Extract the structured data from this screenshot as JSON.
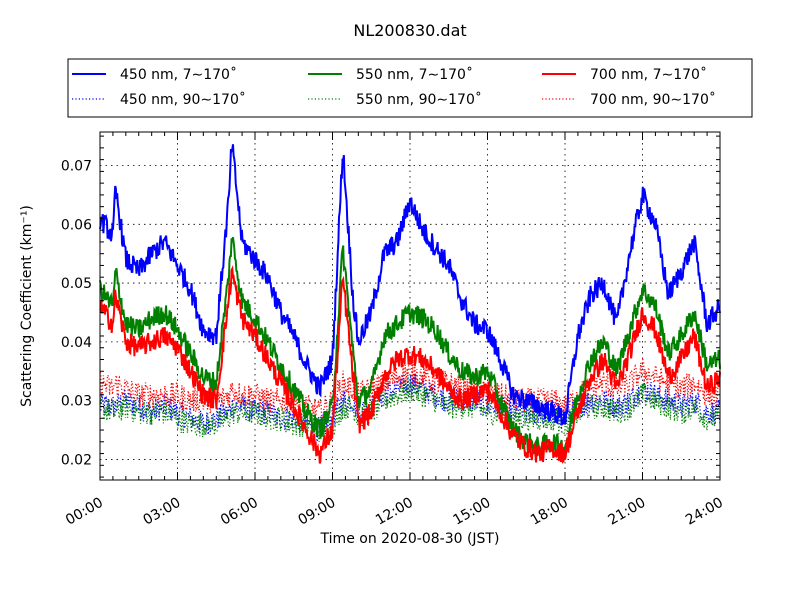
{
  "chart_data": {
    "type": "line",
    "title": "NL200830.dat",
    "xlabel": "Time on 2020-08-30 (JST)",
    "ylabel": "Scattering Coefficient (km⁻¹)",
    "xlim": [
      0,
      24
    ],
    "ylim": [
      0.0165,
      0.0757
    ],
    "x_ticks": [
      0,
      3,
      6,
      9,
      12,
      15,
      18,
      21,
      24
    ],
    "x_tick_labels": [
      "00:00",
      "03:00",
      "06:00",
      "09:00",
      "12:00",
      "15:00",
      "18:00",
      "21:00",
      "24:00"
    ],
    "y_ticks": [
      0.02,
      0.03,
      0.04,
      0.05,
      0.06,
      0.07
    ],
    "y_tick_labels": [
      "0.02",
      "0.03",
      "0.04",
      "0.05",
      "0.06",
      "0.07"
    ],
    "grid": true,
    "legend_position": "top-outside",
    "x_hours": [
      0,
      0.5,
      0.6,
      1,
      1.5,
      2,
      2.5,
      3,
      3.5,
      4,
      4.5,
      5,
      5.1,
      5.5,
      6,
      6.5,
      7,
      7.5,
      8,
      8.5,
      9,
      9.4,
      9.8,
      10,
      10.5,
      11,
      11.5,
      12,
      12.5,
      13,
      13.5,
      14,
      14.5,
      15,
      15.5,
      16,
      16.5,
      17,
      17.5,
      18,
      18.5,
      19,
      19.5,
      20,
      20.5,
      21,
      21.5,
      22,
      22.5,
      23,
      23.5,
      24
    ],
    "series": [
      {
        "name": "450 nm, 7∼170˚",
        "color": "#0000ff",
        "style": "solid",
        "values": [
          0.061,
          0.058,
          0.066,
          0.054,
          0.052,
          0.055,
          0.057,
          0.053,
          0.049,
          0.042,
          0.041,
          0.065,
          0.074,
          0.057,
          0.054,
          0.051,
          0.045,
          0.041,
          0.036,
          0.032,
          0.037,
          0.073,
          0.047,
          0.04,
          0.045,
          0.055,
          0.057,
          0.064,
          0.059,
          0.056,
          0.053,
          0.047,
          0.043,
          0.042,
          0.037,
          0.031,
          0.03,
          0.029,
          0.028,
          0.027,
          0.041,
          0.048,
          0.05,
          0.043,
          0.055,
          0.065,
          0.06,
          0.048,
          0.052,
          0.057,
          0.043,
          0.046
        ]
      },
      {
        "name": "550 nm, 7∼170˚",
        "color": "#008000",
        "style": "solid",
        "values": [
          0.049,
          0.046,
          0.052,
          0.043,
          0.042,
          0.044,
          0.045,
          0.042,
          0.038,
          0.034,
          0.033,
          0.052,
          0.058,
          0.047,
          0.044,
          0.04,
          0.036,
          0.032,
          0.028,
          0.025,
          0.029,
          0.056,
          0.038,
          0.03,
          0.032,
          0.041,
          0.043,
          0.045,
          0.044,
          0.042,
          0.038,
          0.035,
          0.034,
          0.035,
          0.03,
          0.025,
          0.023,
          0.022,
          0.023,
          0.022,
          0.031,
          0.037,
          0.04,
          0.035,
          0.042,
          0.049,
          0.046,
          0.038,
          0.041,
          0.045,
          0.036,
          0.037
        ]
      },
      {
        "name": "700 nm, 7∼170˚",
        "color": "#ff0000",
        "style": "solid",
        "values": [
          0.046,
          0.043,
          0.048,
          0.04,
          0.039,
          0.04,
          0.041,
          0.039,
          0.035,
          0.031,
          0.03,
          0.048,
          0.052,
          0.044,
          0.041,
          0.037,
          0.033,
          0.029,
          0.025,
          0.021,
          0.025,
          0.051,
          0.034,
          0.026,
          0.028,
          0.034,
          0.037,
          0.038,
          0.037,
          0.035,
          0.032,
          0.03,
          0.031,
          0.032,
          0.028,
          0.024,
          0.022,
          0.021,
          0.022,
          0.021,
          0.028,
          0.034,
          0.037,
          0.032,
          0.038,
          0.045,
          0.042,
          0.034,
          0.037,
          0.041,
          0.032,
          0.034
        ]
      },
      {
        "name": "450 nm, 90∼170˚",
        "color": "#0000ff",
        "style": "dotted",
        "values": [
          0.029,
          0.029,
          0.029,
          0.03,
          0.029,
          0.028,
          0.029,
          0.028,
          0.027,
          0.026,
          0.027,
          0.028,
          0.029,
          0.029,
          0.028,
          0.028,
          0.027,
          0.027,
          0.026,
          0.025,
          0.027,
          0.03,
          0.03,
          0.028,
          0.029,
          0.031,
          0.032,
          0.033,
          0.032,
          0.031,
          0.03,
          0.03,
          0.03,
          0.029,
          0.029,
          0.028,
          0.028,
          0.028,
          0.028,
          0.027,
          0.029,
          0.03,
          0.03,
          0.029,
          0.03,
          0.032,
          0.031,
          0.03,
          0.029,
          0.03,
          0.028,
          0.028
        ]
      },
      {
        "name": "550 nm, 90∼170˚",
        "color": "#008000",
        "style": "dotted",
        "values": [
          0.029,
          0.028,
          0.028,
          0.029,
          0.028,
          0.028,
          0.028,
          0.027,
          0.026,
          0.026,
          0.026,
          0.027,
          0.028,
          0.028,
          0.028,
          0.027,
          0.027,
          0.026,
          0.026,
          0.025,
          0.026,
          0.029,
          0.029,
          0.027,
          0.028,
          0.03,
          0.031,
          0.032,
          0.031,
          0.03,
          0.029,
          0.029,
          0.029,
          0.028,
          0.028,
          0.027,
          0.027,
          0.027,
          0.027,
          0.026,
          0.028,
          0.029,
          0.029,
          0.028,
          0.029,
          0.031,
          0.03,
          0.029,
          0.028,
          0.029,
          0.027,
          0.027
        ]
      },
      {
        "name": "700 nm, 90∼170˚",
        "color": "#ff0000",
        "style": "dotted",
        "values": [
          0.033,
          0.032,
          0.033,
          0.032,
          0.031,
          0.031,
          0.031,
          0.031,
          0.03,
          0.03,
          0.03,
          0.031,
          0.032,
          0.031,
          0.031,
          0.03,
          0.03,
          0.03,
          0.029,
          0.028,
          0.03,
          0.033,
          0.032,
          0.031,
          0.032,
          0.033,
          0.034,
          0.035,
          0.034,
          0.033,
          0.033,
          0.032,
          0.032,
          0.031,
          0.031,
          0.03,
          0.03,
          0.03,
          0.03,
          0.029,
          0.031,
          0.032,
          0.033,
          0.032,
          0.033,
          0.035,
          0.034,
          0.033,
          0.032,
          0.033,
          0.031,
          0.031
        ]
      }
    ]
  }
}
